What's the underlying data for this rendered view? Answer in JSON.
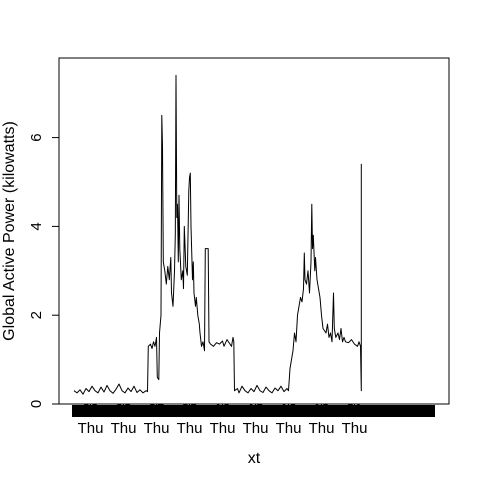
{
  "chart_data": {
    "type": "line",
    "title": "",
    "xlabel": "xt",
    "ylabel": "Global Active Power (kilowatts)",
    "xlim": [
      0,
      24
    ],
    "ylim": [
      0,
      7.5
    ],
    "yticks": [
      0,
      2,
      4,
      6
    ],
    "ytick_labels": [
      "0",
      "2",
      "4",
      "6"
    ],
    "xticks": [
      {
        "x": 1.1,
        "top": "00",
        "bottom": "Thu"
      },
      {
        "x": 3.3,
        "top": "02",
        "bottom": "Thu"
      },
      {
        "x": 5.5,
        "top": "05",
        "bottom": "Thu"
      },
      {
        "x": 7.7,
        "top": "08",
        "bottom": "Thu"
      },
      {
        "x": 9.9,
        "top": "10",
        "bottom": "Thu"
      },
      {
        "x": 12.1,
        "top": "13",
        "bottom": "Thu"
      },
      {
        "x": 14.3,
        "top": "16",
        "bottom": "Thu"
      },
      {
        "x": 16.5,
        "top": "19",
        "bottom": "Thu"
      },
      {
        "x": 18.7,
        "top": "21",
        "bottom": "Thu"
      }
    ],
    "grid": false,
    "series": [
      {
        "color": "#000000",
        "points": [
          [
            0.0,
            0.3
          ],
          [
            0.2,
            0.25
          ],
          [
            0.4,
            0.32
          ],
          [
            0.6,
            0.22
          ],
          [
            0.8,
            0.35
          ],
          [
            1.0,
            0.28
          ],
          [
            1.2,
            0.4
          ],
          [
            1.4,
            0.3
          ],
          [
            1.6,
            0.25
          ],
          [
            1.8,
            0.38
          ],
          [
            2.0,
            0.27
          ],
          [
            2.2,
            0.42
          ],
          [
            2.4,
            0.3
          ],
          [
            2.6,
            0.24
          ],
          [
            2.8,
            0.33
          ],
          [
            3.0,
            0.45
          ],
          [
            3.2,
            0.3
          ],
          [
            3.4,
            0.25
          ],
          [
            3.6,
            0.36
          ],
          [
            3.8,
            0.28
          ],
          [
            4.0,
            0.4
          ],
          [
            4.2,
            0.26
          ],
          [
            4.4,
            0.32
          ],
          [
            4.6,
            0.25
          ],
          [
            4.8,
            0.3
          ],
          [
            4.9,
            0.28
          ],
          [
            4.95,
            1.3
          ],
          [
            5.1,
            1.35
          ],
          [
            5.2,
            1.25
          ],
          [
            5.3,
            1.4
          ],
          [
            5.4,
            1.3
          ],
          [
            5.5,
            1.5
          ],
          [
            5.55,
            0.6
          ],
          [
            5.65,
            0.55
          ],
          [
            5.7,
            1.6
          ],
          [
            5.8,
            2.0
          ],
          [
            5.85,
            6.5
          ],
          [
            5.9,
            5.8
          ],
          [
            5.95,
            3.2
          ],
          [
            6.05,
            3.0
          ],
          [
            6.15,
            2.7
          ],
          [
            6.25,
            3.1
          ],
          [
            6.35,
            2.8
          ],
          [
            6.45,
            3.3
          ],
          [
            6.5,
            2.5
          ],
          [
            6.6,
            2.2
          ],
          [
            6.7,
            3.0
          ],
          [
            6.75,
            3.8
          ],
          [
            6.8,
            7.4
          ],
          [
            6.85,
            4.2
          ],
          [
            6.9,
            4.5
          ],
          [
            6.95,
            3.2
          ],
          [
            7.0,
            4.7
          ],
          [
            7.05,
            3.5
          ],
          [
            7.15,
            2.8
          ],
          [
            7.25,
            3.0
          ],
          [
            7.3,
            2.6
          ],
          [
            7.35,
            4.0
          ],
          [
            7.45,
            3.1
          ],
          [
            7.55,
            2.9
          ],
          [
            7.65,
            4.8
          ],
          [
            7.7,
            5.1
          ],
          [
            7.75,
            5.2
          ],
          [
            7.8,
            4.0
          ],
          [
            7.9,
            2.8
          ],
          [
            7.95,
            3.2
          ],
          [
            8.0,
            2.5
          ],
          [
            8.1,
            2.2
          ],
          [
            8.15,
            2.4
          ],
          [
            8.25,
            2.0
          ],
          [
            8.35,
            1.8
          ],
          [
            8.4,
            1.6
          ],
          [
            8.5,
            1.3
          ],
          [
            8.6,
            1.4
          ],
          [
            8.7,
            1.2
          ],
          [
            8.75,
            3.5
          ],
          [
            8.8,
            3.5
          ],
          [
            8.95,
            3.5
          ],
          [
            9.0,
            1.4
          ],
          [
            9.1,
            1.35
          ],
          [
            9.3,
            1.3
          ],
          [
            9.5,
            1.38
          ],
          [
            9.7,
            1.35
          ],
          [
            9.9,
            1.42
          ],
          [
            10.0,
            1.3
          ],
          [
            10.2,
            1.45
          ],
          [
            10.4,
            1.35
          ],
          [
            10.5,
            1.3
          ],
          [
            10.6,
            1.5
          ],
          [
            10.65,
            1.4
          ],
          [
            10.7,
            0.3
          ],
          [
            10.9,
            0.35
          ],
          [
            11.0,
            0.25
          ],
          [
            11.2,
            0.4
          ],
          [
            11.4,
            0.3
          ],
          [
            11.6,
            0.25
          ],
          [
            11.8,
            0.35
          ],
          [
            12.0,
            0.28
          ],
          [
            12.2,
            0.42
          ],
          [
            12.4,
            0.3
          ],
          [
            12.6,
            0.26
          ],
          [
            12.8,
            0.38
          ],
          [
            13.0,
            0.3
          ],
          [
            13.2,
            0.25
          ],
          [
            13.4,
            0.36
          ],
          [
            13.6,
            0.3
          ],
          [
            13.8,
            0.4
          ],
          [
            14.0,
            0.28
          ],
          [
            14.2,
            0.35
          ],
          [
            14.3,
            0.3
          ],
          [
            14.4,
            0.8
          ],
          [
            14.5,
            1.0
          ],
          [
            14.6,
            1.2
          ],
          [
            14.7,
            1.6
          ],
          [
            14.8,
            1.4
          ],
          [
            14.9,
            2.0
          ],
          [
            15.0,
            2.2
          ],
          [
            15.1,
            2.4
          ],
          [
            15.2,
            2.3
          ],
          [
            15.3,
            2.6
          ],
          [
            15.35,
            3.4
          ],
          [
            15.4,
            2.8
          ],
          [
            15.5,
            2.7
          ],
          [
            15.6,
            3.0
          ],
          [
            15.7,
            2.5
          ],
          [
            15.8,
            3.2
          ],
          [
            15.85,
            4.5
          ],
          [
            15.9,
            3.5
          ],
          [
            15.95,
            3.8
          ],
          [
            16.05,
            3.0
          ],
          [
            16.1,
            3.3
          ],
          [
            16.2,
            2.8
          ],
          [
            16.3,
            2.6
          ],
          [
            16.4,
            2.4
          ],
          [
            16.5,
            2.0
          ],
          [
            16.6,
            1.7
          ],
          [
            16.8,
            1.6
          ],
          [
            16.9,
            1.8
          ],
          [
            17.0,
            1.5
          ],
          [
            17.1,
            1.6
          ],
          [
            17.2,
            1.4
          ],
          [
            17.3,
            2.5
          ],
          [
            17.35,
            1.7
          ],
          [
            17.45,
            1.5
          ],
          [
            17.6,
            1.6
          ],
          [
            17.7,
            1.45
          ],
          [
            17.8,
            1.7
          ],
          [
            17.9,
            1.4
          ],
          [
            18.0,
            1.5
          ],
          [
            18.1,
            1.4
          ],
          [
            18.3,
            1.38
          ],
          [
            18.5,
            1.45
          ],
          [
            18.7,
            1.35
          ],
          [
            18.9,
            1.3
          ],
          [
            19.0,
            1.4
          ],
          [
            19.1,
            1.3
          ],
          [
            19.15,
            0.3
          ],
          [
            19.15,
            5.4
          ],
          [
            19.15,
            0.3
          ],
          [
            19.15,
            4.3
          ],
          [
            19.15,
            1.4
          ]
        ]
      }
    ]
  }
}
